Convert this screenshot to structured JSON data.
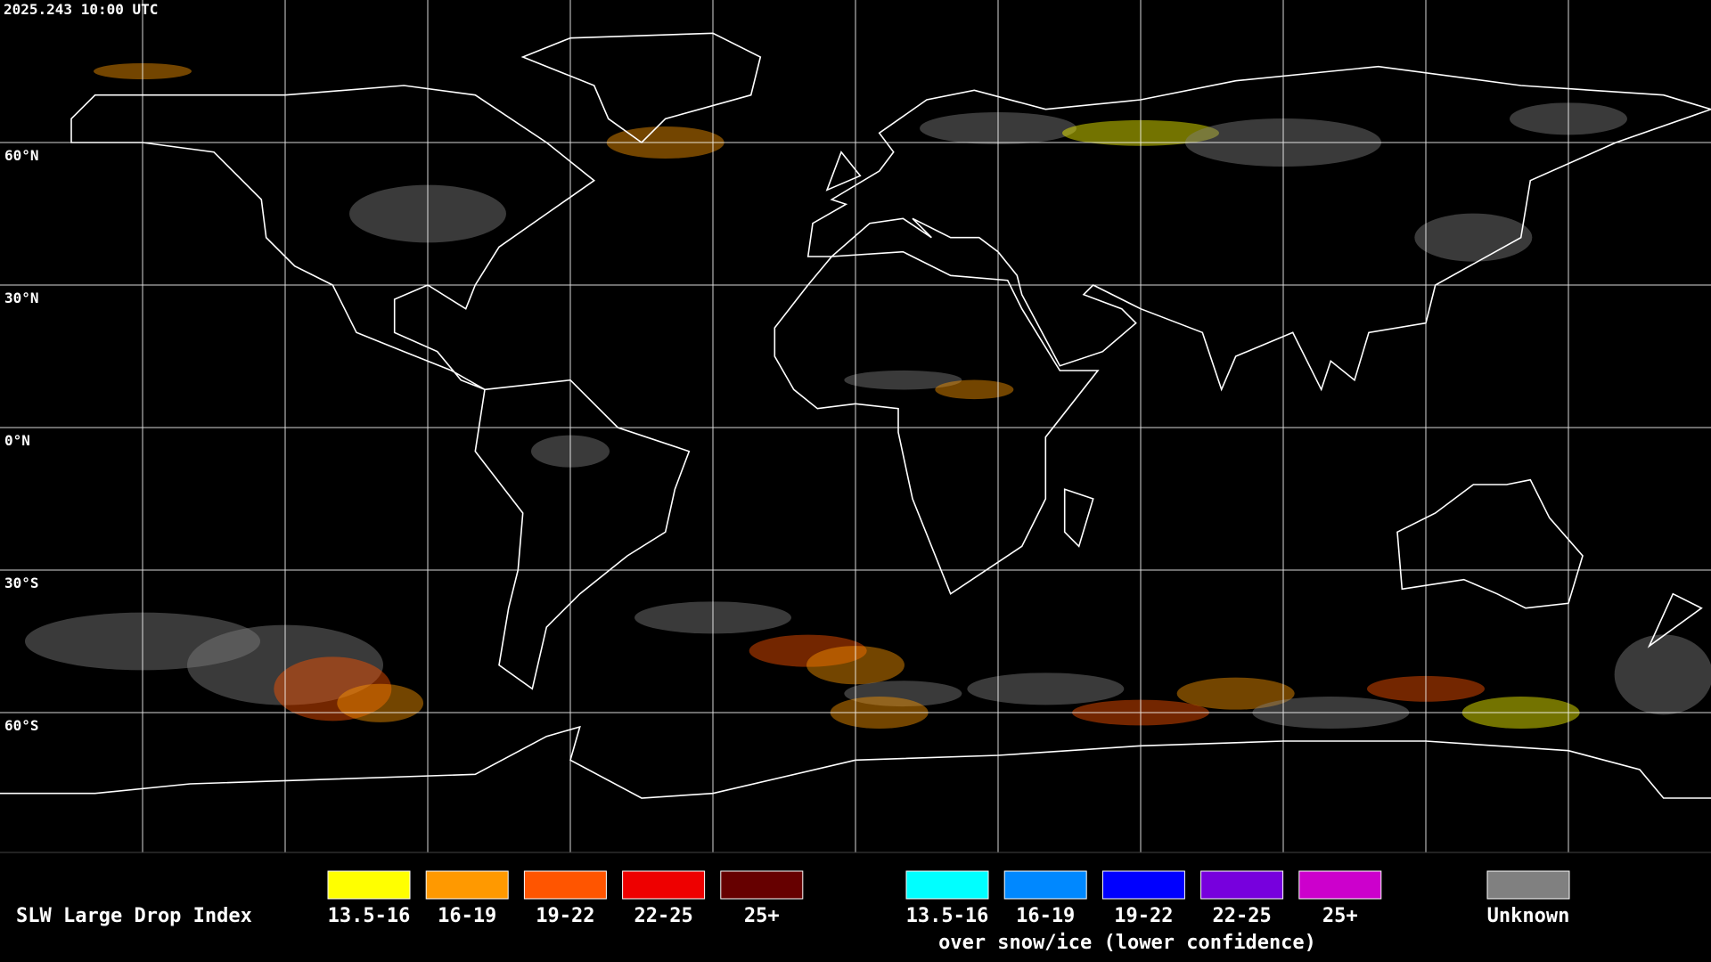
{
  "timestamp": "2025.243 10:00 UTC",
  "grid_labels": [
    "60°N",
    "30°N",
    "0°N",
    "30°S",
    "60°S"
  ],
  "legend": {
    "title": "SLW Large Drop Index",
    "items": [
      {
        "label": "13.5-16",
        "color": "#ffff00"
      },
      {
        "label": "16-19",
        "color": "#ff9900"
      },
      {
        "label": "19-22",
        "color": "#ff5500"
      },
      {
        "label": "22-25",
        "color": "#ee0000"
      },
      {
        "label": "25+",
        "color": "#660000"
      }
    ],
    "snow_items": [
      {
        "label": "13.5-16",
        "color": "#00ffff"
      },
      {
        "label": "16-19",
        "color": "#0088ff"
      },
      {
        "label": "19-22",
        "color": "#0000ff"
      },
      {
        "label": "22-25",
        "color": "#7700dd"
      },
      {
        "label": "25+",
        "color": "#cc00cc"
      }
    ],
    "snow_caption": "over snow/ice (lower confidence)",
    "unknown": {
      "label": "Unknown",
      "color": "#808080"
    }
  }
}
